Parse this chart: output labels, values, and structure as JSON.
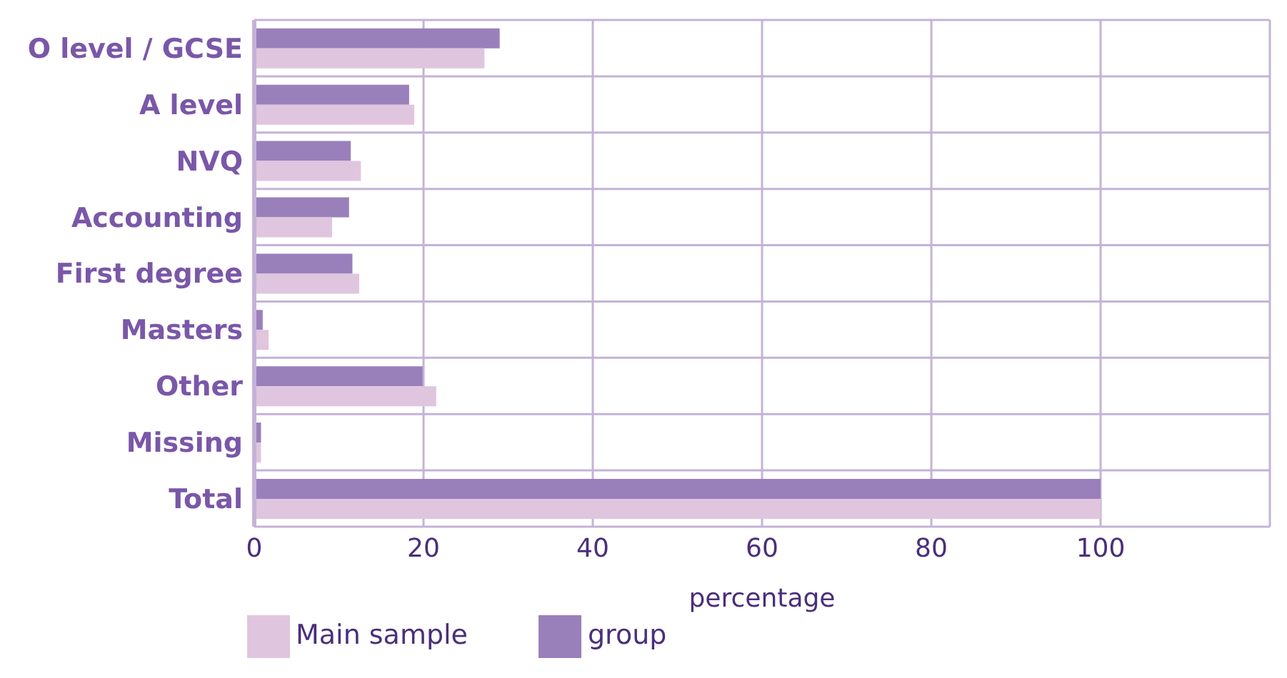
{
  "chart_data": {
    "type": "bar",
    "orientation": "horizontal",
    "xlabel": "percentage",
    "categories": [
      "O level / GCSE",
      "A level",
      "NVQ",
      "Accounting",
      "First degree",
      "Masters",
      "Other",
      "Missing",
      "Total"
    ],
    "series": [
      {
        "name": "group",
        "color": "#9a80bb",
        "values": [
          29.0,
          18.3,
          11.4,
          11.2,
          11.6,
          1.0,
          19.9,
          0.8,
          100
        ]
      },
      {
        "name": "Main sample",
        "color": "#e0c5de",
        "values": [
          27.2,
          18.9,
          12.6,
          9.2,
          12.4,
          1.7,
          21.5,
          0.8,
          100
        ]
      }
    ],
    "xlim": [
      0,
      120
    ],
    "xticks": [
      0,
      20,
      40,
      60,
      80,
      100
    ],
    "grid": true,
    "legend": "bottom left"
  }
}
